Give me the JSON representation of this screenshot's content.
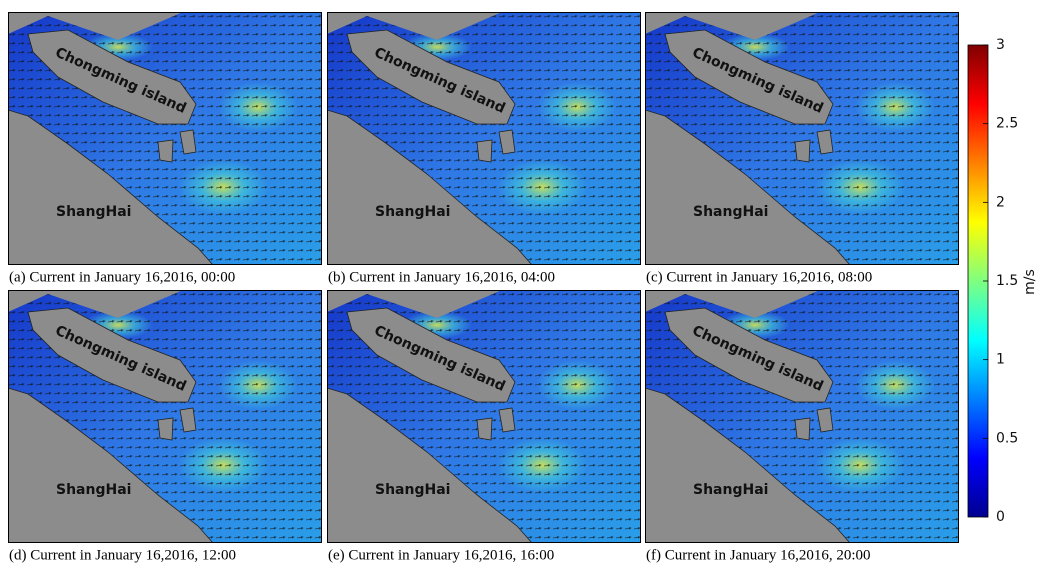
{
  "panels": [
    {
      "caption": "(a) Current in January 16,2016, 00:00"
    },
    {
      "caption": "(b) Current in January 16,2016, 04:00"
    },
    {
      "caption": "(c) Current in January 16,2016, 08:00"
    },
    {
      "caption": "(d) Current in January 16,2016, 12:00"
    },
    {
      "caption": "(e) Current in January 16,2016, 16:00"
    },
    {
      "caption": "(f) Current in January 16,2016, 20:00"
    }
  ],
  "island_label": "Chongming island",
  "city_label": "ShangHai",
  "colorbar": {
    "label": "m/s",
    "lim": [
      0,
      3
    ],
    "ticks": [
      0,
      0.5,
      1,
      1.5,
      2,
      2.5,
      3
    ]
  }
}
